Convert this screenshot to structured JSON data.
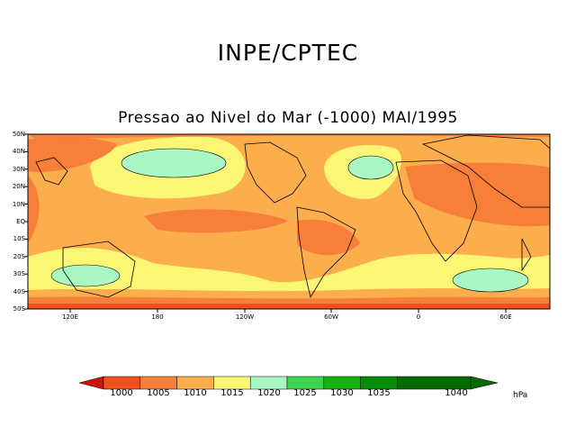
{
  "header": {
    "title": "INPE/CPTEC",
    "map_title": "Pressao ao Nivel do Mar (-1000) MAI/1995"
  },
  "axes": {
    "lat_labels": [
      "50N",
      "40N",
      "30N",
      "20N",
      "10N",
      "EQ",
      "10S",
      "20S",
      "30S",
      "40S",
      "50S"
    ],
    "lon_labels": [
      "120E",
      "180",
      "120W",
      "60W",
      "0",
      "60E"
    ]
  },
  "colorbar": {
    "levels": [
      "1000",
      "1005",
      "1010",
      "1015",
      "1020",
      "1025",
      "1030",
      "1035",
      "1040"
    ],
    "colors": [
      "#cc1400",
      "#f0501e",
      "#f77f3a",
      "#fcad4c",
      "#fbf774",
      "#a9f7c3",
      "#3fd44d",
      "#17b10f",
      "#058b05",
      "#036b03"
    ],
    "unit": "hPa"
  }
}
